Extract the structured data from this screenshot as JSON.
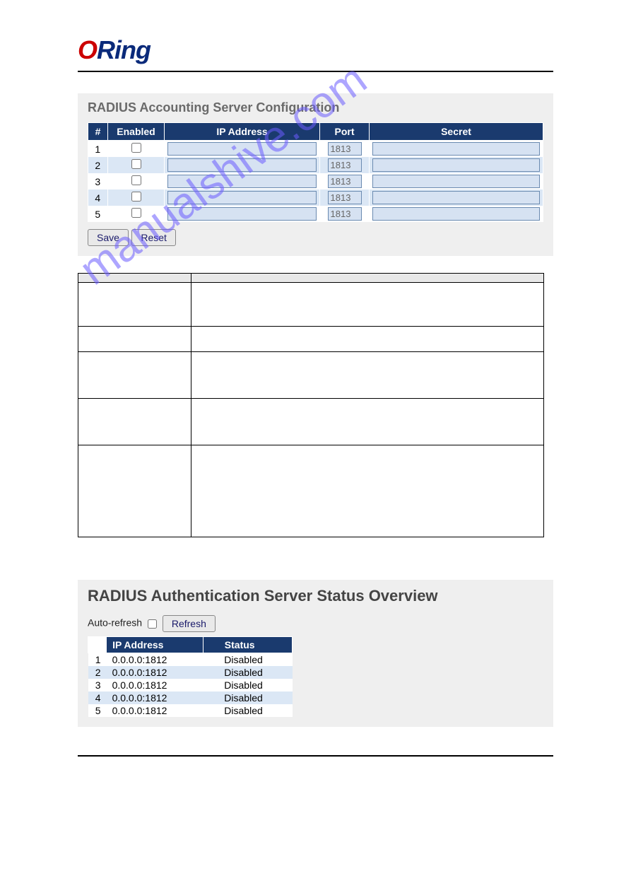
{
  "logo_text": "ORing",
  "watermark": "manualshive.com",
  "config_panel": {
    "title": "RADIUS Accounting Server Configuration",
    "headers": {
      "num": "#",
      "enabled": "Enabled",
      "ip": "IP Address",
      "port": "Port",
      "secret": "Secret"
    },
    "rows": [
      {
        "num": "1",
        "enabled": false,
        "ip": "",
        "port": "1813",
        "secret": ""
      },
      {
        "num": "2",
        "enabled": false,
        "ip": "",
        "port": "1813",
        "secret": ""
      },
      {
        "num": "3",
        "enabled": false,
        "ip": "",
        "port": "1813",
        "secret": ""
      },
      {
        "num": "4",
        "enabled": false,
        "ip": "",
        "port": "1813",
        "secret": ""
      },
      {
        "num": "5",
        "enabled": false,
        "ip": "",
        "port": "1813",
        "secret": ""
      }
    ],
    "buttons": {
      "save": "Save",
      "reset": "Reset"
    }
  },
  "desc_table": {
    "header_left": "",
    "header_right": ""
  },
  "status_panel": {
    "title": "RADIUS Authentication Server Status Overview",
    "auto_refresh_label": "Auto-refresh",
    "auto_refresh_checked": false,
    "refresh_button": "Refresh",
    "headers": {
      "num": "#",
      "ip": "IP Address",
      "status": "Status"
    },
    "rows": [
      {
        "num": "1",
        "ip": "0.0.0.0:1812",
        "status": "Disabled"
      },
      {
        "num": "2",
        "ip": "0.0.0.0:1812",
        "status": "Disabled"
      },
      {
        "num": "3",
        "ip": "0.0.0.0:1812",
        "status": "Disabled"
      },
      {
        "num": "4",
        "ip": "0.0.0.0:1812",
        "status": "Disabled"
      },
      {
        "num": "5",
        "ip": "0.0.0.0:1812",
        "status": "Disabled"
      }
    ]
  }
}
